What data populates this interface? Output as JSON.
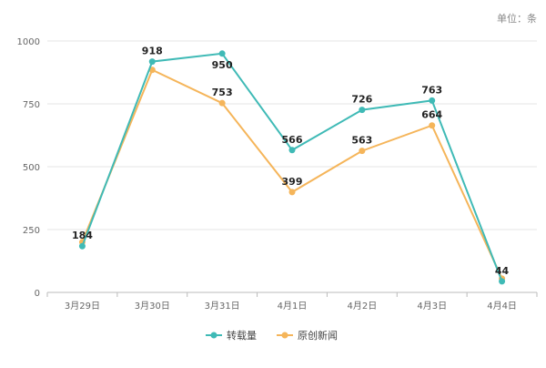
{
  "chart_data": {
    "type": "line",
    "unit_label": "单位：条",
    "categories": [
      "3月29日",
      "3月30日",
      "3月31日",
      "4月1日",
      "4月2日",
      "4月3日",
      "4月4日"
    ],
    "ylim": [
      0,
      1000
    ],
    "yticks": [
      0,
      250,
      500,
      750,
      1000
    ],
    "grid": true,
    "legend_position": "bottom-center",
    "series": [
      {
        "name": "转载量",
        "color": "#3fbab6",
        "marker": "circle",
        "values": [
          184,
          918,
          950,
          566,
          726,
          763,
          44
        ]
      },
      {
        "name": "原创新闻",
        "color": "#f5b55a",
        "marker": "circle",
        "values": [
          200,
          885,
          753,
          399,
          563,
          664,
          55
        ]
      }
    ],
    "data_labels": [
      {
        "series": 0,
        "index": 0,
        "text": "184"
      },
      {
        "series": 0,
        "index": 1,
        "text": "918"
      },
      {
        "series": 0,
        "index": 2,
        "text": "950"
      },
      {
        "series": 1,
        "index": 2,
        "text": "753"
      },
      {
        "series": 0,
        "index": 3,
        "text": "566"
      },
      {
        "series": 1,
        "index": 3,
        "text": "399"
      },
      {
        "series": 0,
        "index": 4,
        "text": "726"
      },
      {
        "series": 1,
        "index": 4,
        "text": "563"
      },
      {
        "series": 0,
        "index": 5,
        "text": "763"
      },
      {
        "series": 1,
        "index": 5,
        "text": "664"
      },
      {
        "series": 0,
        "index": 6,
        "text": "44"
      }
    ]
  }
}
